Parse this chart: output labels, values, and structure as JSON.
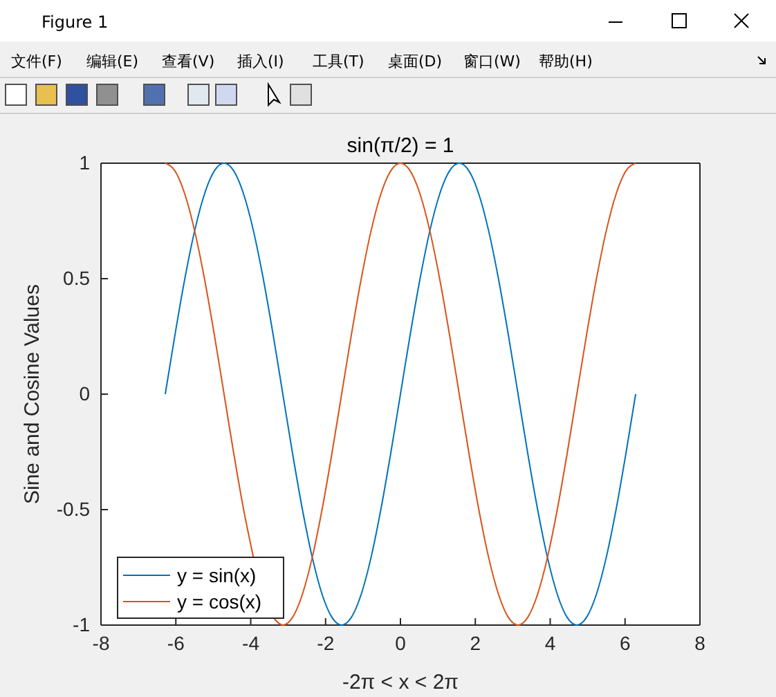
{
  "chart_data": {
    "type": "line",
    "title": "sin(π/2) = 1",
    "xlabel": "-2π < x < 2π",
    "ylabel": "Sine and Cosine Values",
    "annotations": [
      "Figure 1",
      "文件(F)",
      "编辑(E)",
      "查看(V)",
      "插入(I)",
      "工具(T)",
      "桌面(D)",
      "窗口(W)",
      "帮助(H)"
    ],
    "x": [
      -6.283,
      -6.021,
      -5.76,
      -5.498,
      -5.236,
      -4.974,
      -4.712,
      -4.451,
      -4.189,
      -3.927,
      -3.665,
      -3.403,
      -3.142,
      -2.88,
      -2.618,
      -2.356,
      -2.094,
      -1.833,
      -1.571,
      -1.309,
      -1.047,
      -0.785,
      -0.524,
      -0.262,
      0,
      0.262,
      0.524,
      0.785,
      1.047,
      1.309,
      1.571,
      1.833,
      2.094,
      2.356,
      2.618,
      2.88,
      3.142,
      3.403,
      3.665,
      3.927,
      4.189,
      4.451,
      4.712,
      4.974,
      5.236,
      5.498,
      5.76,
      6.021,
      6.283
    ],
    "series": [
      {
        "name": "y = sin(x)",
        "color": "#0072bd",
        "values": [
          0,
          0.259,
          0.5,
          0.707,
          0.866,
          0.966,
          1,
          0.966,
          0.866,
          0.707,
          0.5,
          0.259,
          0,
          -0.259,
          -0.5,
          -0.707,
          -0.866,
          -0.966,
          -1,
          -0.966,
          -0.866,
          -0.707,
          -0.5,
          -0.259,
          0,
          0.259,
          0.5,
          0.707,
          0.866,
          0.966,
          1,
          0.966,
          0.866,
          0.707,
          0.5,
          0.259,
          0,
          -0.259,
          -0.5,
          -0.707,
          -0.866,
          -0.966,
          -1,
          -0.966,
          -0.866,
          -0.707,
          -0.5,
          -0.259,
          0
        ]
      },
      {
        "name": "y = cos(x)",
        "color": "#d95319",
        "values": [
          1,
          0.966,
          0.866,
          0.707,
          0.5,
          0.259,
          0,
          -0.259,
          -0.5,
          -0.707,
          null,
          -0.966,
          -1,
          -0.966,
          -0.866,
          -0.707,
          -0.5,
          -0.259,
          0,
          0.259,
          0.5,
          0.707,
          0.866,
          0.966,
          1,
          0.966,
          0.866,
          0.707,
          0.5,
          0.259,
          0,
          -0.259,
          -0.5,
          -0.707,
          -0.866,
          -0.966,
          -1,
          -0.966,
          -0.866,
          -0.707,
          -0.5,
          -0.259,
          0,
          0.259,
          0.5,
          0.707,
          0.866,
          0.966,
          1
        ]
      }
    ],
    "xlim": [
      -8,
      8
    ],
    "xticks": [
      -8,
      -6,
      -4,
      -2,
      0,
      2,
      4,
      6,
      8
    ],
    "ylim": [
      -1,
      1
    ],
    "yticks": [
      -1,
      -0.5,
      0,
      0.5,
      1
    ],
    "grid": false,
    "legend": "bottom left",
    "line_style": "solid",
    "marker": "none"
  }
}
